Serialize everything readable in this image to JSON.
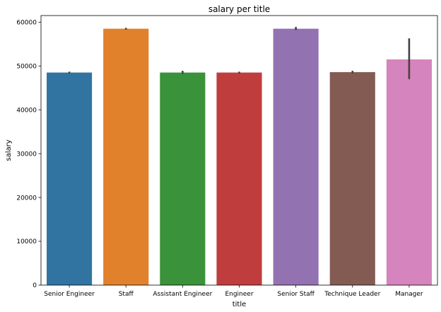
{
  "chart_data": {
    "type": "bar",
    "title": "salary per title",
    "xlabel": "title",
    "ylabel": "salary",
    "ylim": [
      0,
      61500
    ],
    "yticks": [
      0,
      10000,
      20000,
      30000,
      40000,
      50000,
      60000
    ],
    "grid": false,
    "legend": "none",
    "categories": [
      "Senior Engineer",
      "Staff",
      "Assistant Engineer",
      "Engineer",
      "Senior Staff",
      "Technique Leader",
      "Manager"
    ],
    "values": [
      48500,
      58500,
      48500,
      48500,
      58500,
      48600,
      51500
    ],
    "error_low": [
      48300,
      58300,
      48200,
      48300,
      58200,
      48300,
      47000
    ],
    "error_high": [
      48700,
      58700,
      48900,
      48700,
      58900,
      48900,
      56300
    ],
    "colors": [
      "#3274a1",
      "#e1812c",
      "#3a923a",
      "#c03d3e",
      "#9372b2",
      "#845b53",
      "#d684bd"
    ],
    "error_color": "#424242"
  }
}
